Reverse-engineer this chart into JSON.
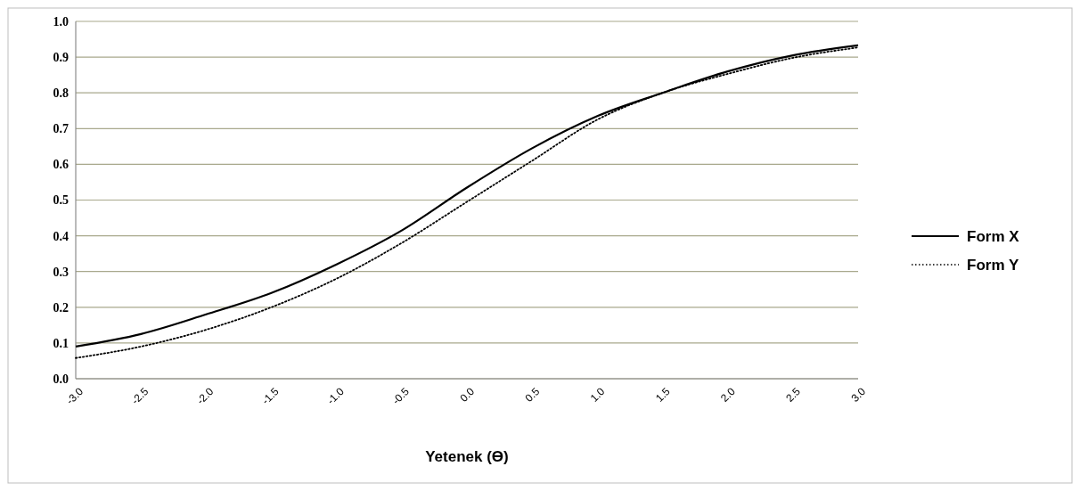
{
  "chart_data": {
    "type": "line",
    "xlabel": "Yetenek (ϴ)",
    "x": [
      -3.0,
      -2.5,
      -2.0,
      -1.5,
      -1.0,
      -0.5,
      0.0,
      0.5,
      1.0,
      1.5,
      2.0,
      2.5,
      3.0
    ],
    "series": [
      {
        "name": "Form X",
        "color": "#000000",
        "line_style": "solid",
        "values": [
          0.09,
          0.125,
          0.18,
          0.24,
          0.32,
          0.415,
          0.535,
          0.645,
          0.735,
          0.8,
          0.86,
          0.905,
          0.933
        ]
      },
      {
        "name": "Form Y",
        "color": "#000000",
        "line_style": "dotted",
        "values": [
          0.058,
          0.09,
          0.137,
          0.2,
          0.28,
          0.38,
          0.495,
          0.61,
          0.725,
          0.8,
          0.853,
          0.898,
          0.927
        ]
      }
    ],
    "xlim": [
      -3.0,
      3.0
    ],
    "xticks": [
      {
        "value": -3.0,
        "label": "-3.0"
      },
      {
        "value": -2.5,
        "label": "-2.5"
      },
      {
        "value": -2.0,
        "label": "-2.0"
      },
      {
        "value": -1.5,
        "label": "-1.5"
      },
      {
        "value": -1.0,
        "label": "-1.0"
      },
      {
        "value": -0.5,
        "label": "-0.5"
      },
      {
        "value": 0,
        "label": "0.0"
      },
      {
        "value": 0.5,
        "label": "0.5"
      },
      {
        "value": 1.0,
        "label": "1.0"
      },
      {
        "value": 1.5,
        "label": "1.5"
      },
      {
        "value": 2.0,
        "label": "2.0"
      },
      {
        "value": 2.5,
        "label": "2.5"
      },
      {
        "value": 3.0,
        "label": "3.0"
      }
    ],
    "ylim": [
      0,
      1
    ],
    "yticks": [
      {
        "value": 0,
        "label": "0.0"
      },
      0.1,
      0.2,
      0.3,
      0.4,
      0.5,
      0.6,
      0.7,
      0.8,
      0.9,
      {
        "value": 1,
        "label": "1.0"
      }
    ],
    "grid": "y",
    "legend": "right",
    "marker": "none"
  }
}
